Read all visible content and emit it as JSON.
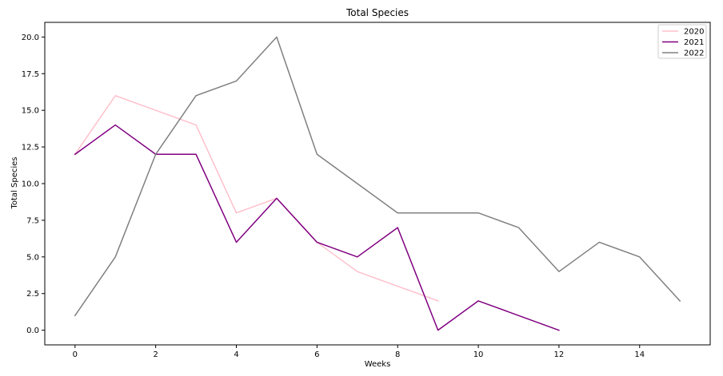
{
  "chart_data": {
    "type": "line",
    "title": "Total Species",
    "xlabel": "Weeks",
    "ylabel": "Total Species",
    "xlim": [
      -0.75,
      15.75
    ],
    "ylim": [
      -1.0,
      21.0
    ],
    "xticks": [
      0,
      2,
      4,
      6,
      8,
      10,
      12,
      14
    ],
    "xtick_labels": [
      "0",
      "2",
      "4",
      "6",
      "8",
      "10",
      "12",
      "14"
    ],
    "yticks": [
      0,
      2.5,
      5,
      7.5,
      10,
      12.5,
      15,
      17.5,
      20
    ],
    "ytick_labels": [
      "0.0",
      "2.5",
      "5.0",
      "7.5",
      "10.0",
      "12.5",
      "15.0",
      "17.5",
      "20.0"
    ],
    "grid": false,
    "legend_position": "top-right",
    "series": [
      {
        "name": "2020",
        "color": "#ffc0cb",
        "x": [
          0,
          1,
          2,
          3,
          4,
          5,
          6,
          7,
          8,
          9
        ],
        "values": [
          12,
          16,
          15,
          14,
          8,
          9,
          6,
          4,
          3,
          2
        ]
      },
      {
        "name": "2021",
        "color": "#800080",
        "x": [
          0,
          1,
          2,
          3,
          4,
          5,
          6,
          7,
          8,
          9,
          10,
          11,
          12
        ],
        "values": [
          12,
          14,
          12,
          12,
          6,
          9,
          6,
          5,
          7,
          0,
          2,
          1,
          0
        ]
      },
      {
        "name": "2022",
        "color": "#808080",
        "x": [
          0,
          1,
          2,
          3,
          4,
          5,
          6,
          7,
          8,
          9,
          10,
          11,
          12,
          13,
          14,
          15
        ],
        "values": [
          1,
          5,
          12,
          16,
          17,
          20,
          12,
          10,
          8,
          8,
          8,
          7,
          4,
          6,
          5,
          2
        ]
      }
    ]
  }
}
